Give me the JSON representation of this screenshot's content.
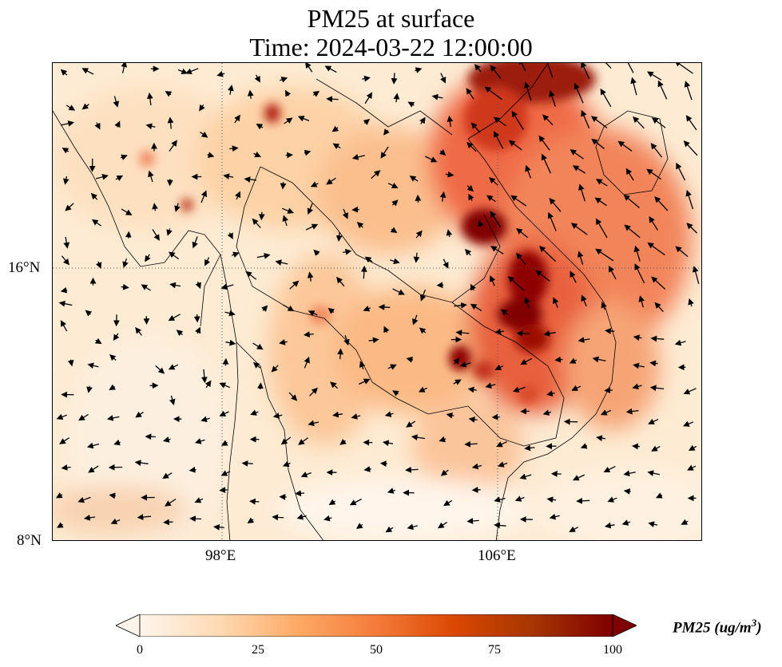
{
  "title": {
    "line1": "PM25 at surface",
    "line2": "Time: 2024-03-22 12:00:00"
  },
  "map": {
    "lat_labels": [
      "16°N",
      "8°N"
    ],
    "lon_labels": [
      "98°E",
      "106°E"
    ],
    "gridline_style": "dotted",
    "land_outlines": "coastlines and country borders",
    "wind_vectors": "black arrows",
    "hotspots": [
      "northern Vietnam / Gulf of Tonkin",
      "central Laos",
      "southern Laos",
      "northern Cambodia",
      "northern Myanmar"
    ]
  },
  "colorbar": {
    "title": "PM25 (ug/m",
    "title_exponent": "3",
    "title_close": ")",
    "ticks": [
      "0",
      "25",
      "50",
      "75",
      "100"
    ],
    "min": 0,
    "max": 100,
    "extend": "both",
    "colormap": [
      "#fff5eb",
      "#fdd9b2",
      "#fdab67",
      "#f57b3a",
      "#d94701",
      "#a63603",
      "#7f0000"
    ]
  }
}
